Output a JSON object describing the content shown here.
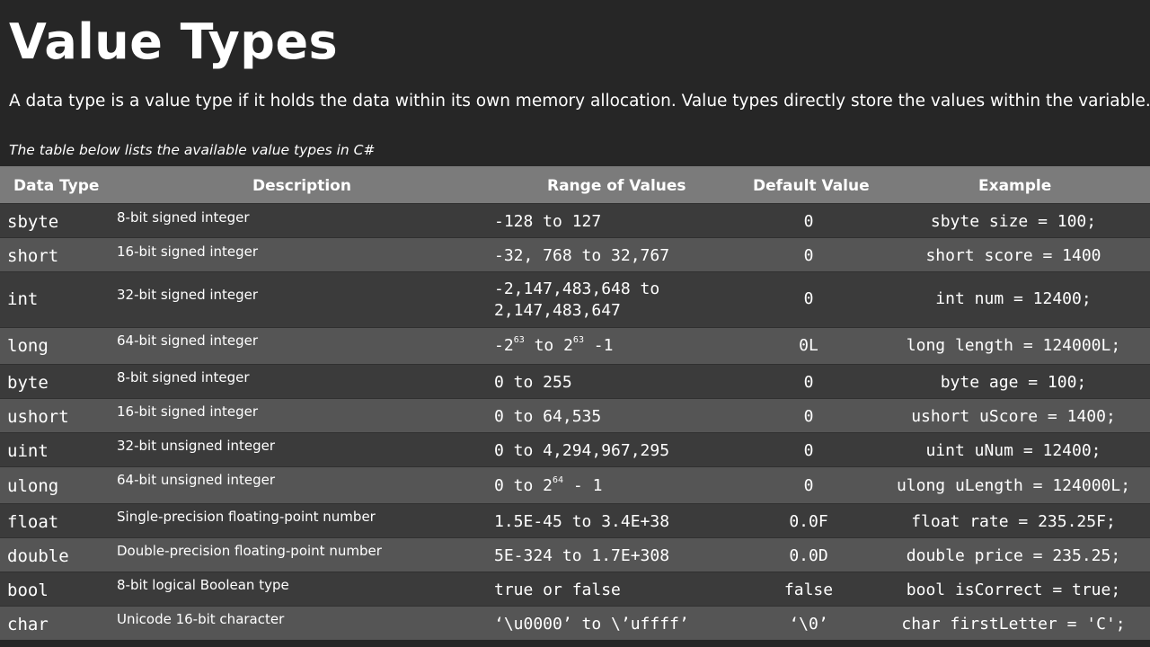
{
  "title": "Value Types",
  "subtitle": "A data type is a value type if it holds the data within its own memory allocation. Value types directly store the values within the variable.",
  "caption": "The table below lists the available value types in C#",
  "table": {
    "headers": {
      "type": "Data Type",
      "description": "Description",
      "range": "Range of Values",
      "default": "Default Value",
      "example": "Example"
    },
    "rows": [
      {
        "type": "sbyte",
        "description": "8-bit signed integer",
        "range": "-128 to 127",
        "default": "0",
        "example": "sbyte size = 100;"
      },
      {
        "type": "short",
        "description": "16-bit signed integer",
        "range": "-32, 768 to 32,767",
        "default": "0",
        "example": "short score = 1400"
      },
      {
        "type": "int",
        "description": "32-bit signed integer",
        "range_line1": "-2,147,483,648 to",
        "range_line2": "2,147,483,647",
        "default": "0",
        "example": "int num = 12400;"
      },
      {
        "type": "long",
        "description": "64-bit signed integer",
        "range_a": "-2",
        "range_sup1": "63",
        "range_b": " to 2",
        "range_sup2": "63",
        "range_c": " -1",
        "default": "0L",
        "example": "long length = 124000L;"
      },
      {
        "type": "byte",
        "description": "8-bit signed integer",
        "range": "0 to 255",
        "default": "0",
        "example": "byte age = 100;"
      },
      {
        "type": "ushort",
        "description": "16-bit signed integer",
        "range": "0 to 64,535",
        "default": "0",
        "example": "ushort uScore = 1400;"
      },
      {
        "type": "uint",
        "description": "32-bit unsigned integer",
        "range": "0 to 4,294,967,295",
        "default": "0",
        "example": "uint uNum = 12400;"
      },
      {
        "type": "ulong",
        "description": "64-bit unsigned integer",
        "range_a": "0 to 2",
        "range_sup": "64",
        "range_b": " - 1",
        "default": "0",
        "example": "ulong uLength = 124000L;"
      },
      {
        "type": "float",
        "description": "Single-precision floating-point number",
        "range": "1.5E-45 to 3.4E+38",
        "default": "0.0F",
        "example": "float rate = 235.25F;"
      },
      {
        "type": "double",
        "description": "Double-precision floating-point number",
        "range": "5E-324 to 1.7E+308",
        "default": "0.0D",
        "example": "double price = 235.25;"
      },
      {
        "type": "bool",
        "description": "8-bit logical Boolean type",
        "range": "true or false",
        "default": "false",
        "example": "bool isCorrect = true;"
      },
      {
        "type": "char",
        "description": "Unicode 16-bit character",
        "range": "‘\\u0000’ to \\’uffff’",
        "default": "‘\\0’",
        "example": "char firstLetter = 'C';"
      }
    ]
  }
}
